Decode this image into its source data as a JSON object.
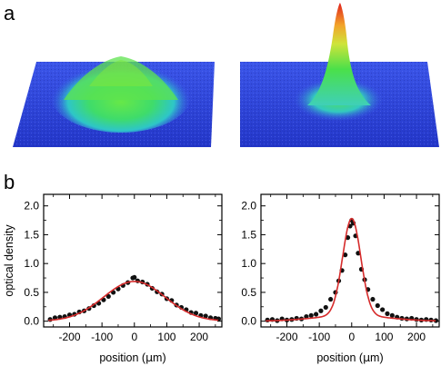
{
  "panels": {
    "a": "a",
    "b": "b"
  },
  "colors": {
    "fit": "#d62b2b",
    "points": "#111111",
    "low": "#2a3fd6",
    "mid": "#3fe05a",
    "high": "#e8321c"
  },
  "surface_plots": [
    {
      "name": "thermal-cloud",
      "shape": "broad"
    },
    {
      "name": "condensate",
      "shape": "narrow-peak"
    }
  ],
  "chart_data": [
    {
      "type": "scatter",
      "title": "",
      "xlabel_prefix": "position (",
      "xlabel_unit": "μ",
      "xlabel_suffix": "m)",
      "ylabel": "optical density",
      "xlim": [
        -280,
        270
      ],
      "ylim": [
        -0.1,
        2.2
      ],
      "xticks": [
        "-200",
        "-100",
        "0",
        "100",
        "200"
      ],
      "yticks": [
        "0.0",
        "0.5",
        "1.0",
        "1.5",
        "2.0"
      ],
      "points": {
        "x": [
          -260,
          -245,
          -230,
          -215,
          -200,
          -185,
          -170,
          -155,
          -140,
          -125,
          -110,
          -95,
          -80,
          -65,
          -50,
          -35,
          -20,
          -5,
          0,
          10,
          25,
          40,
          55,
          70,
          85,
          100,
          115,
          130,
          145,
          160,
          175,
          190,
          205,
          220,
          235,
          250,
          260
        ],
        "y": [
          0.03,
          0.06,
          0.07,
          0.08,
          0.11,
          0.12,
          0.16,
          0.18,
          0.22,
          0.27,
          0.31,
          0.37,
          0.43,
          0.5,
          0.56,
          0.62,
          0.67,
          0.75,
          0.76,
          0.7,
          0.68,
          0.64,
          0.57,
          0.51,
          0.47,
          0.39,
          0.36,
          0.28,
          0.24,
          0.2,
          0.15,
          0.14,
          0.1,
          0.09,
          0.06,
          0.05,
          0.04
        ]
      },
      "fit": {
        "amplitude": 0.69,
        "center": 0,
        "sigma": 95
      }
    },
    {
      "type": "scatter",
      "title": "",
      "xlabel_prefix": "position (",
      "xlabel_unit": "μ",
      "xlabel_suffix": "m)",
      "ylabel": "",
      "xlim": [
        -280,
        270
      ],
      "ylim": [
        -0.1,
        2.2
      ],
      "xticks": [
        "-200",
        "-100",
        "0",
        "100",
        "200"
      ],
      "yticks": [
        "0.0",
        "0.5",
        "1.0",
        "1.5",
        "2.0"
      ],
      "points": {
        "x": [
          -260,
          -245,
          -230,
          -215,
          -200,
          -185,
          -170,
          -155,
          -140,
          -125,
          -110,
          -95,
          -80,
          -65,
          -50,
          -40,
          -30,
          -20,
          -12,
          -5,
          0,
          5,
          12,
          20,
          30,
          40,
          50,
          65,
          80,
          95,
          110,
          125,
          140,
          155,
          170,
          185,
          200,
          215,
          230,
          245,
          260
        ],
        "y": [
          0.02,
          0.03,
          0.01,
          0.04,
          0.02,
          0.03,
          0.05,
          0.04,
          0.08,
          0.1,
          0.12,
          0.18,
          0.24,
          0.38,
          0.5,
          0.7,
          0.88,
          1.15,
          1.45,
          1.65,
          1.75,
          1.7,
          1.48,
          1.18,
          0.9,
          0.72,
          0.55,
          0.38,
          0.27,
          0.2,
          0.13,
          0.1,
          0.07,
          0.05,
          0.04,
          0.05,
          0.03,
          0.02,
          0.03,
          0.02,
          0.01
        ]
      },
      "fit": {
        "amplitude": 1.68,
        "center": 0,
        "sigma": 28,
        "background_amplitude": 0.1,
        "background_sigma": 110
      }
    }
  ]
}
